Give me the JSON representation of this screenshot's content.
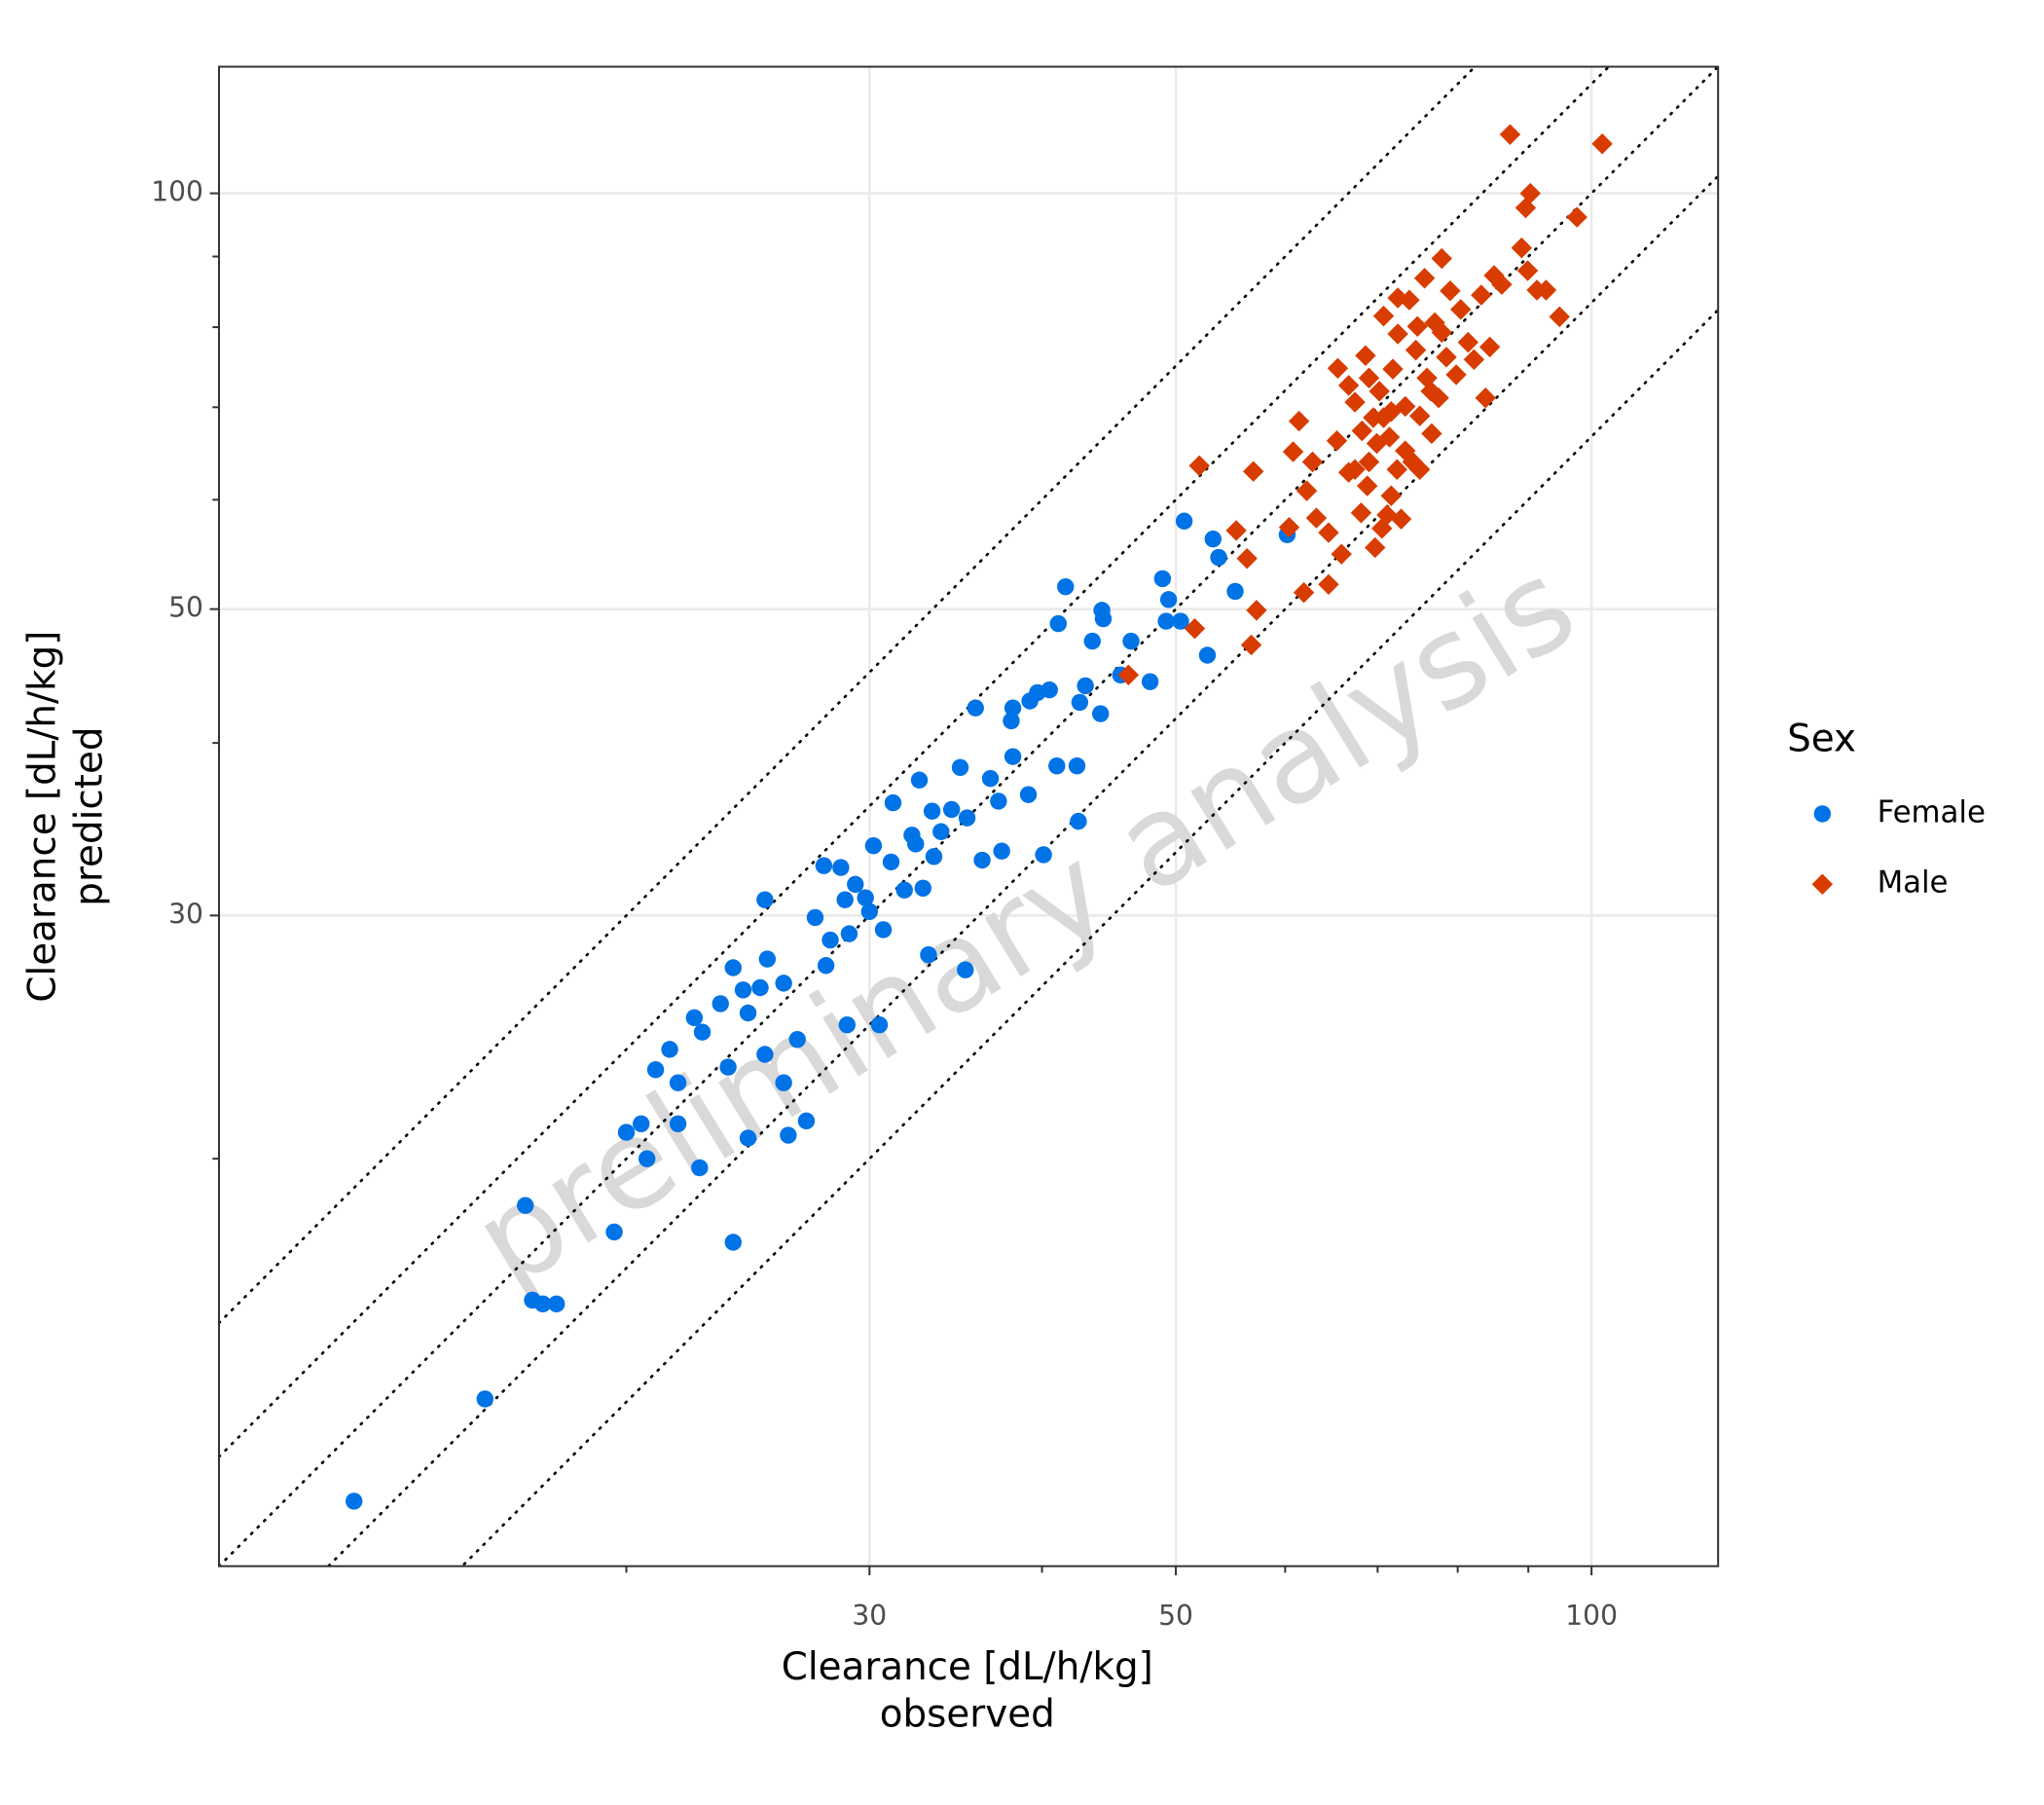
{
  "chart_data": {
    "type": "scatter",
    "x_label": [
      "Clearance [dL/h/kg]",
      "observed"
    ],
    "y_label": [
      "Clearance [dL/h/kg]",
      "predicted"
    ],
    "watermark": "preliminary analysis",
    "legend_title": "Sex",
    "legend_position": "right",
    "log_x": true,
    "log_y": true,
    "grid": true,
    "xlim": [
      10.14,
      123.5
    ],
    "ylim": [
      10.14,
      123.5
    ],
    "xticks": [
      30,
      50,
      100
    ],
    "yticks": [
      30,
      50,
      100
    ],
    "minor_xticks": [
      20,
      40,
      60,
      70,
      80,
      90
    ],
    "minor_yticks": [
      20,
      40,
      60,
      70,
      80,
      90
    ],
    "identity_line": true,
    "reference_factors": [
      1.2,
      1.5
    ],
    "series": [
      {
        "name": "Female",
        "color": "#0073e6",
        "marker": "circle",
        "x": [
          12.7,
          15.8,
          16.9,
          17.1,
          17.4,
          17.8,
          19.6,
          20.0,
          20.7,
          20.5,
          21.0,
          21.5,
          21.8,
          21.8,
          22.6,
          22.4,
          22.7,
          23.4,
          23.7,
          23.9,
          23.9,
          24.3,
          24.5,
          24.5,
          25.0,
          25.2,
          25.3,
          25.2,
          26.0,
          26.2,
          26.0,
          26.6,
          27.0,
          27.4,
          27.8,
          27.9,
          28.1,
          28.6,
          28.8,
          28.9,
          29.0,
          29.3,
          29.8,
          30.0,
          30.2,
          30.5,
          30.7,
          31.1,
          31.2,
          31.8,
          32.2,
          32.4,
          32.6,
          32.8,
          33.1,
          33.3,
          33.4,
          33.8,
          34.4,
          34.9,
          35.2,
          35.8,
          35.3,
          36.2,
          36.7,
          37.2,
          37.4,
          38.0,
          38.1,
          38.1,
          39.1,
          39.2,
          39.7,
          40.1,
          40.5,
          41.0,
          41.1,
          41.6,
          42.4,
          42.6,
          43.0,
          42.5,
          43.5,
          44.1,
          44.2,
          44.3,
          45.6,
          46.4,
          47.9,
          48.9,
          49.4,
          49.2,
          50.4,
          50.7,
          52.7,
          53.2,
          53.7,
          55.2,
          60.2
        ],
        "values": [
          11.3,
          13.4,
          18.5,
          15.8,
          15.7,
          15.7,
          17.7,
          20.9,
          20.0,
          21.2,
          23.2,
          24.0,
          22.7,
          21.2,
          19.7,
          25.3,
          24.7,
          25.9,
          23.3,
          17.4,
          27.5,
          26.5,
          20.7,
          25.5,
          26.6,
          30.8,
          27.9,
          23.8,
          22.7,
          20.8,
          26.8,
          24.4,
          21.3,
          29.9,
          32.6,
          27.6,
          28.8,
          32.5,
          30.8,
          25.0,
          29.1,
          31.6,
          30.9,
          30.2,
          33.7,
          25.0,
          29.3,
          32.8,
          36.2,
          31.3,
          34.3,
          33.8,
          37.6,
          31.4,
          28.1,
          35.7,
          33.1,
          34.5,
          35.8,
          38.4,
          27.4,
          42.4,
          35.3,
          32.9,
          37.7,
          36.3,
          33.4,
          41.5,
          42.4,
          39.1,
          36.7,
          42.9,
          43.5,
          33.2,
          43.7,
          38.5,
          48.8,
          51.9,
          38.5,
          42.8,
          44.0,
          35.1,
          47.4,
          42.0,
          49.9,
          49.2,
          44.8,
          47.4,
          44.3,
          52.6,
          50.8,
          49.0,
          49.0,
          57.9,
          46.3,
          56.2,
          54.5,
          51.5,
          56.6
        ]
      },
      {
        "name": "Male",
        "color": "#d83c00",
        "marker": "diamond",
        "x": [
          46.2,
          51.6,
          52.0,
          55.3,
          56.3,
          56.7,
          56.9,
          57.2,
          60.4,
          60.8,
          61.4,
          61.9,
          62.2,
          62.8,
          63.2,
          64.5,
          64.5,
          65.4,
          65.5,
          65.9,
          66.7,
          67.4,
          68.1,
          68.6,
          69.0,
          69.5,
          69.7,
          70.2,
          70.7,
          71.1,
          71.4,
          71.8,
          72.3,
          72.4,
          72.8,
          73.3,
          73.8,
          74.2,
          74.6,
          75.1,
          75.7,
          76.0,
          76.6,
          77.0,
          77.5,
          77.9,
          78.5,
          79.0,
          79.8,
          80.4,
          81.4,
          82.2,
          83.2,
          83.8,
          84.4,
          85.0,
          86.1,
          87.3,
          89.0,
          89.9,
          89.6,
          90.3,
          91.3,
          92.7,
          94.8,
          97.6,
          101.8,
          67.4,
          68.2,
          69.9,
          71.6,
          69.0,
          66.7,
          70.7,
          73.3,
          71.6,
          68.8,
          70.5,
          75.1,
          76.5,
          77.9,
          74.8,
          72.4
        ],
        "values": [
          44.8,
          48.4,
          63.5,
          57.0,
          54.4,
          47.1,
          62.9,
          49.9,
          57.3,
          65.0,
          68.4,
          51.4,
          60.9,
          63.9,
          58.2,
          56.8,
          52.1,
          66.2,
          74.7,
          54.8,
          62.8,
          70.6,
          58.7,
          76.3,
          63.9,
          68.8,
          55.4,
          71.9,
          81.5,
          58.5,
          66.6,
          74.6,
          63.1,
          79.1,
          58.1,
          70.1,
          83.7,
          63.9,
          77.0,
          69.0,
          86.8,
          73.5,
          67.0,
          80.6,
          71.1,
          89.7,
          76.1,
          85.0,
          73.9,
          82.4,
          78.0,
          75.8,
          84.4,
          71.1,
          77.4,
          87.2,
          85.9,
          110.3,
          91.3,
          87.9,
          97.6,
          100,
          85.1,
          85.1,
          81.4,
          96.1,
          108.6,
          63.1,
          67.3,
          65.9,
          69.5,
          73.5,
          72.6,
          68.8,
          65.1,
          60.4,
          61.4,
          57.2,
          63.1,
          71.9,
          79.3,
          80.1,
          84.0
        ]
      }
    ]
  }
}
